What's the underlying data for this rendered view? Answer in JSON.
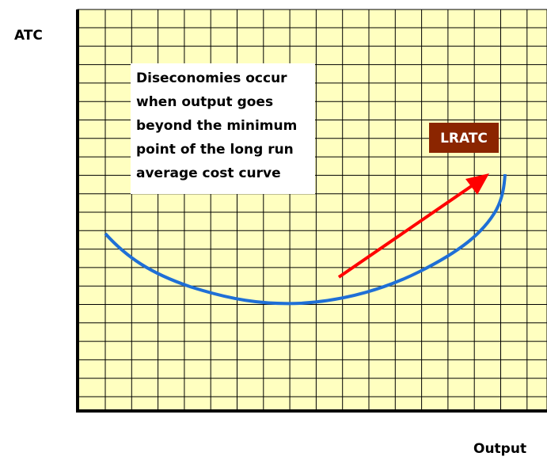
{
  "y_axis_label": "ATC",
  "x_axis_label": "Output",
  "annotation": {
    "lines": [
      "Diseconomies occur",
      "when output goes",
      "beyond the minimum",
      "point of the long run",
      "average cost curve"
    ]
  },
  "curve_label": "LRATC"
}
